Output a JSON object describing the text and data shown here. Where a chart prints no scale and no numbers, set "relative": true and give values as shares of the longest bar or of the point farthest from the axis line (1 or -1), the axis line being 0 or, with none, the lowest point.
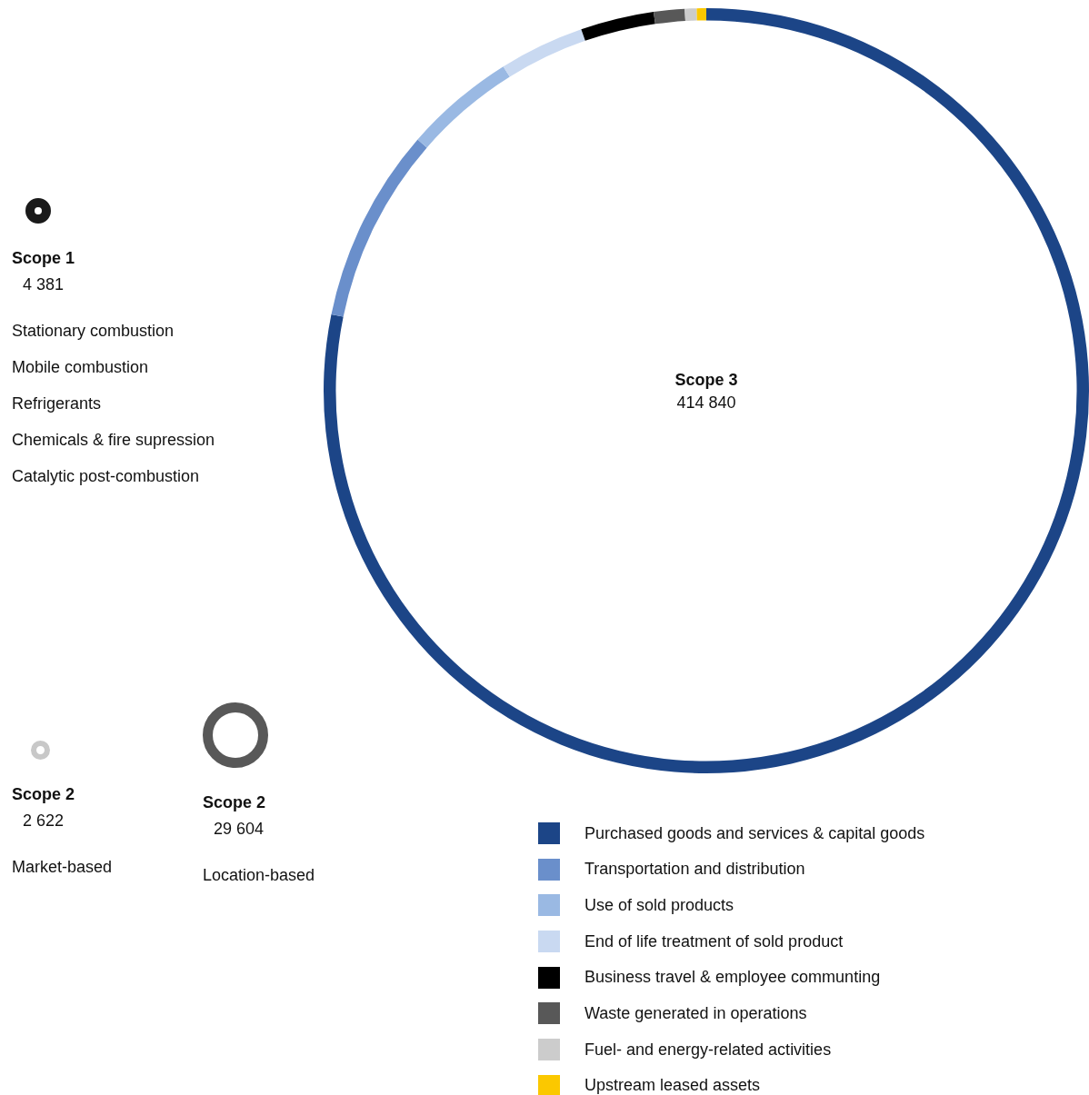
{
  "chart_data": [
    {
      "type": "donut",
      "title": "Scope 3",
      "subtitle": "414 840",
      "relative": true,
      "legend": "bottom right",
      "categories": [
        "Purchased goods and services & capital goods",
        "Transportation and distribution",
        "Use of sold products",
        "End of life treatment of sold product",
        "Business travel & employee communting",
        "Waste generated in operations",
        "Fuel- and energy-related activities",
        "Upstream leased assets"
      ],
      "values": [
        78.2,
        8.2,
        4.7,
        3.6,
        3.1,
        1.3,
        0.5,
        0.4
      ],
      "colors": [
        "#1c4587",
        "#6a8fcb",
        "#9ab9e3",
        "#c9d9f1",
        "#000000",
        "#585858",
        "#cccccc",
        "#fbc800"
      ]
    },
    {
      "type": "other",
      "title": "Scope 1",
      "subtitle": "4 381",
      "color": "#1a1a1a",
      "annotations": [
        "Stationary combustion",
        "Mobile combustion",
        "Refrigerants",
        "Chemicals & fire supression",
        "Catalytic post-combustion"
      ]
    },
    {
      "type": "other",
      "title": "Scope 2",
      "subtitle": "2 622",
      "color": "#c8c8c8",
      "annotations": [
        "Market-based"
      ]
    },
    {
      "type": "other",
      "title": "Scope 2",
      "subtitle": "29 604",
      "color": "#585858",
      "annotations": [
        "Location-based"
      ]
    }
  ]
}
